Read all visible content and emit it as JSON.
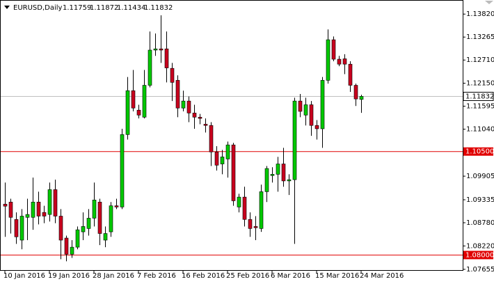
{
  "chart_data": {
    "type": "candlestick",
    "title": "EURUSD,Daily",
    "categories": [
      "10 Jan 2016",
      null,
      null,
      null,
      null,
      null,
      null,
      null,
      "19 Jan 2016",
      null,
      null,
      null,
      null,
      null,
      null,
      null,
      "28 Jan 2016",
      null,
      null,
      null,
      null,
      null,
      null,
      null,
      "7 Feb 2016",
      null,
      null,
      null,
      null,
      null,
      null,
      null,
      "16 Feb 2016",
      null,
      null,
      null,
      null,
      null,
      null,
      null,
      "25 Feb 2016",
      null,
      null,
      null,
      null,
      null,
      null,
      null,
      "6 Mar 2016",
      null,
      null,
      null,
      null,
      null,
      null,
      null,
      "15 Mar 2016",
      null,
      null,
      null,
      null,
      null,
      null,
      null,
      "24 Mar 2016"
    ],
    "open": [
      1.0923,
      1.0928,
      1.0886,
      1.0836,
      1.0891,
      1.0891,
      1.0928,
      1.0903,
      1.0898,
      1.0958,
      1.0894,
      1.0841,
      1.0802,
      1.0819,
      1.0856,
      1.0864,
      1.0889,
      1.0928,
      1.0836,
      1.0856,
      1.0919,
      1.0916,
      1.1091,
      1.1197,
      1.115,
      1.1133,
      1.121,
      1.1295,
      1.1298,
      1.1298,
      1.1251,
      1.1222,
      1.1155,
      1.1172,
      1.1143,
      1.1133,
      1.1116,
      1.1113,
      1.1049,
      1.102,
      1.1032,
      1.1066,
      1.0916,
      1.094,
      1.0886,
      1.0869,
      1.0864,
      1.0953,
      1.0992,
      1.0995,
      1.102,
      1.0979,
      1.0982,
      1.1172,
      1.1138,
      1.1163,
      1.1113,
      1.1105,
      1.1222,
      1.132,
      1.1273,
      1.1274,
      1.1261,
      1.121,
      1.11759
    ],
    "high": [
      1.0975,
      1.0936,
      1.0903,
      1.0911,
      1.0936,
      1.0987,
      1.0953,
      1.0919,
      1.0975,
      1.0982,
      1.0911,
      1.0847,
      1.0836,
      1.0869,
      1.0903,
      1.0911,
      1.0975,
      1.0936,
      1.0869,
      1.0928,
      1.0936,
      1.1105,
      1.123,
      1.1247,
      1.1163,
      1.1247,
      1.134,
      1.1335,
      1.1379,
      1.134,
      1.1264,
      1.1234,
      1.1197,
      1.1183,
      1.1163,
      1.1141,
      1.113,
      1.1121,
      1.1063,
      1.1054,
      1.1074,
      1.1071,
      1.0948,
      1.0965,
      1.0903,
      1.0894,
      1.097,
      1.1015,
      1.1012,
      1.1037,
      1.1059,
      1.0995,
      1.118,
      1.1189,
      1.118,
      1.1172,
      1.1126,
      1.123,
      1.1345,
      1.1328,
      1.1281,
      1.1285,
      1.1268,
      1.1214,
      1.11872
    ],
    "low": [
      1.0844,
      1.0852,
      1.0827,
      1.0814,
      1.0836,
      1.0861,
      1.0874,
      1.0877,
      1.0881,
      1.0877,
      1.079,
      1.0785,
      1.0793,
      1.0814,
      1.0836,
      1.0847,
      1.0869,
      1.0824,
      1.0819,
      1.0844,
      1.0911,
      1.0911,
      1.1079,
      1.1147,
      1.113,
      1.113,
      1.1205,
      1.1281,
      1.1264,
      1.1217,
      1.1172,
      1.1133,
      1.1147,
      1.1121,
      1.1105,
      1.1116,
      1.1096,
      1.1015,
      1.1004,
      1.0995,
      1.0987,
      1.0919,
      1.0903,
      1.0869,
      1.0844,
      1.0836,
      1.0856,
      1.0928,
      1.0975,
      1.0953,
      1.0965,
      1.0945,
      1.0827,
      1.1133,
      1.1113,
      1.1088,
      1.1079,
      1.1059,
      1.1214,
      1.1268,
      1.1256,
      1.1237,
      1.1194,
      1.116,
      1.11434
    ],
    "close": [
      1.0918,
      1.0891,
      1.0844,
      1.0894,
      1.0898,
      1.0928,
      1.0894,
      1.0894,
      1.0958,
      1.0894,
      1.0836,
      1.0802,
      1.0819,
      1.0861,
      1.0869,
      1.0889,
      1.0933,
      1.0852,
      1.0852,
      1.0919,
      1.0916,
      1.1091,
      1.1197,
      1.1155,
      1.1138,
      1.121,
      1.1295,
      1.1298,
      1.1295,
      1.1252,
      1.1217,
      1.1155,
      1.1172,
      1.1143,
      1.1133,
      1.113,
      1.1113,
      1.1049,
      1.1017,
      1.1037,
      1.1066,
      1.0931,
      1.094,
      1.0886,
      1.0864,
      1.0866,
      1.0953,
      1.1009,
      1.0995,
      1.102,
      1.0979,
      1.0982,
      1.1172,
      1.1147,
      1.1163,
      1.1113,
      1.1105,
      1.1222,
      1.132,
      1.1273,
      1.1261,
      1.1261,
      1.121,
      1.1177,
      1.11832
    ],
    "up_color": "#00c800",
    "down_color": "#c8001e",
    "ylim": [
      1.0762,
      1.1416
    ],
    "yticks": [
      {
        "value": 1.1382,
        "label": "1.13820"
      },
      1.13265,
      {
        "value": 1.1271,
        "label": "1.12710"
      },
      {
        "value": 1.1215,
        "label": "1.12150"
      },
      1.11595,
      {
        "value": 1.1104,
        "label": "1.11040"
      },
      1.09905,
      1.09335,
      {
        "value": 1.0878,
        "label": "1.08780"
      },
      {
        "value": 1.0822,
        "label": "1.08220"
      },
      1.07655
    ],
    "levels": [
      {
        "value": 1.105,
        "label": "1.10500",
        "color": "#e00000"
      },
      {
        "value": 1.08,
        "label": "1.08000",
        "color": "#e00000"
      }
    ],
    "grid": false
  }
}
